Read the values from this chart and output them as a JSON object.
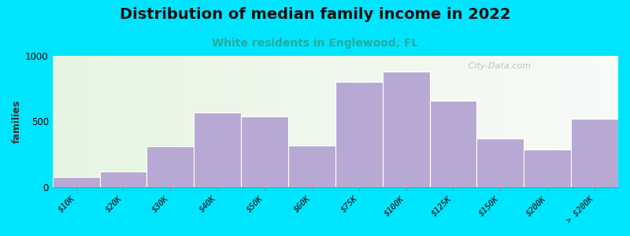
{
  "title": "Distribution of median family income in 2022",
  "subtitle": "White residents in Englewood, FL",
  "ylabel": "families",
  "categories": [
    "$10K",
    "$20K",
    "$30K",
    "$40K",
    "$50K",
    "$60K",
    "$75K",
    "$100K",
    "$125K",
    "$150K",
    "$200K",
    "> $200K"
  ],
  "values": [
    80,
    120,
    310,
    570,
    540,
    320,
    800,
    880,
    660,
    370,
    290,
    520
  ],
  "bar_color": "#b8a9d4",
  "bar_edge_color": "#ffffff",
  "background_outer": "#00e5ff",
  "title_fontsize": 14,
  "title_fontweight": "bold",
  "subtitle_fontsize": 10,
  "subtitle_color": "#2aaa99",
  "ylabel_fontsize": 9,
  "tick_fontsize": 7.5,
  "ylim": [
    0,
    1000
  ],
  "yticks": [
    0,
    500,
    1000
  ],
  "watermark": "   City-Data.com"
}
